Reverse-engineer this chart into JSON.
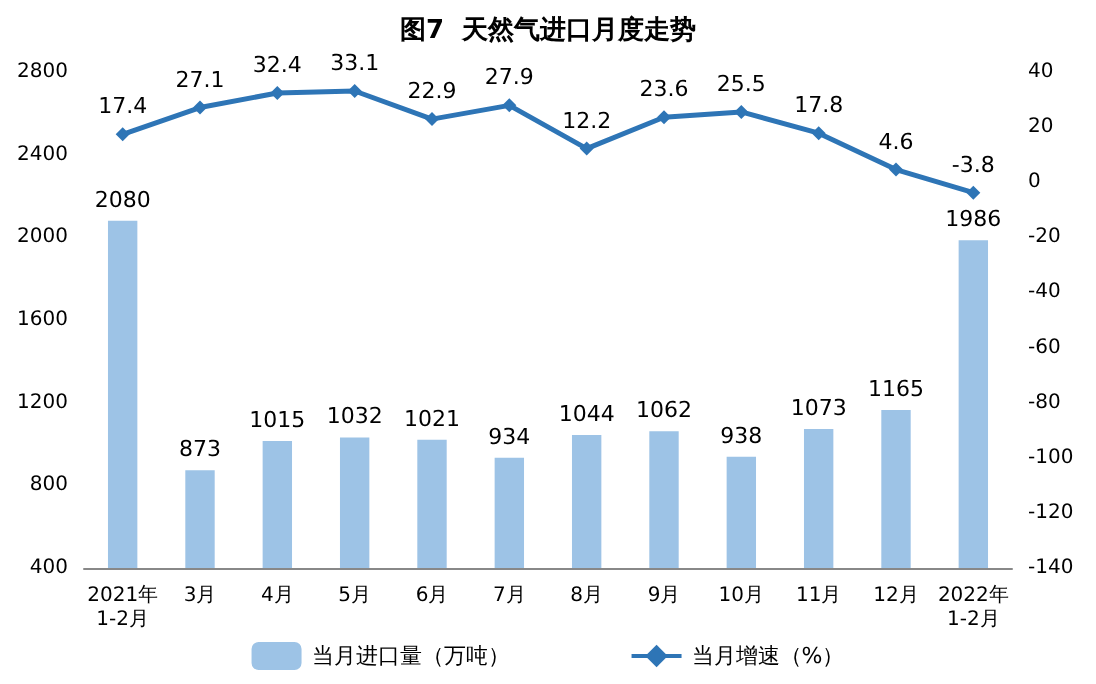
{
  "chart_data": {
    "type": "bar",
    "title": "图7  天然气进口月度走势",
    "categories": [
      "2021年\n1-2月",
      "3月",
      "4月",
      "5月",
      "6月",
      "7月",
      "8月",
      "9月",
      "10月",
      "11月",
      "12月",
      "2022年\n1-2月"
    ],
    "series": [
      {
        "name": "当月进口量（万吨）",
        "color": "#9dc3e6",
        "values": [
          2080,
          873,
          1015,
          1032,
          1021,
          934,
          1044,
          1062,
          938,
          1073,
          1165,
          1986
        ]
      },
      {
        "name": "当月增速（%）",
        "type": "line",
        "axis": "y2",
        "color": "#2e75b6",
        "values": [
          17.4,
          27.1,
          32.4,
          33.1,
          22.9,
          27.9,
          12.2,
          23.6,
          25.5,
          17.8,
          4.6,
          -3.8
        ]
      }
    ],
    "ylim": [
      400,
      2800
    ],
    "yticks": [
      400,
      800,
      1200,
      1600,
      2000,
      2400,
      2800
    ],
    "y2lim": [
      -140,
      40
    ],
    "y2ticks": [
      -140,
      -120,
      -100,
      -80,
      -60,
      -40,
      -20,
      0,
      20,
      40
    ],
    "data_labels": true,
    "legend": "bottom",
    "grid": false,
    "marker": "diamond",
    "line_style": "solid"
  }
}
